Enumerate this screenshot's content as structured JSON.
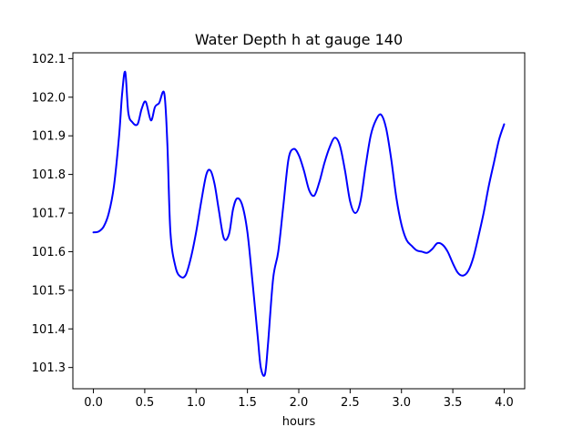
{
  "chart_data": {
    "type": "line",
    "title": "Water Depth h at gauge 140",
    "xlabel": "hours",
    "ylabel": "",
    "xlim": [
      -0.2,
      4.2
    ],
    "ylim": [
      101.245,
      102.115
    ],
    "x_ticks": [
      0.0,
      0.5,
      1.0,
      1.5,
      2.0,
      2.5,
      3.0,
      3.5,
      4.0
    ],
    "x_tick_labels": [
      "0.0",
      "0.5",
      "1.0",
      "1.5",
      "2.0",
      "2.5",
      "3.0",
      "3.5",
      "4.0"
    ],
    "y_ticks": [
      101.3,
      101.4,
      101.5,
      101.6,
      101.7,
      101.8,
      101.9,
      102.0,
      102.1
    ],
    "y_tick_labels": [
      "101.3",
      "101.4",
      "101.5",
      "101.6",
      "101.7",
      "101.8",
      "101.9",
      "102.0",
      "102.1"
    ],
    "grid": false,
    "line_color": "#0000ff",
    "series": [
      {
        "x": [
          0.0,
          0.05,
          0.1,
          0.15,
          0.2,
          0.25,
          0.28,
          0.31,
          0.34,
          0.38,
          0.43,
          0.47,
          0.51,
          0.56,
          0.6,
          0.64,
          0.69,
          0.72,
          0.75,
          0.8,
          0.85,
          0.9,
          0.95,
          1.0,
          1.05,
          1.1,
          1.14,
          1.18,
          1.22,
          1.27,
          1.32,
          1.36,
          1.4,
          1.45,
          1.5,
          1.55,
          1.6,
          1.63,
          1.67,
          1.7,
          1.75,
          1.8,
          1.85,
          1.9,
          1.95,
          2.0,
          2.05,
          2.1,
          2.15,
          2.2,
          2.25,
          2.3,
          2.35,
          2.4,
          2.45,
          2.5,
          2.55,
          2.6,
          2.65,
          2.7,
          2.75,
          2.8,
          2.85,
          2.9,
          2.95,
          3.0,
          3.05,
          3.1,
          3.15,
          3.2,
          3.25,
          3.3,
          3.35,
          3.4,
          3.45,
          3.5,
          3.55,
          3.6,
          3.65,
          3.7,
          3.75,
          3.8,
          3.85,
          3.9,
          3.95,
          4.0
        ],
        "values": [
          101.65,
          101.652,
          101.665,
          101.7,
          101.77,
          101.9,
          102.01,
          102.065,
          101.96,
          101.935,
          101.93,
          101.97,
          101.988,
          101.94,
          101.975,
          101.985,
          102.01,
          101.88,
          101.65,
          101.56,
          101.535,
          101.54,
          101.585,
          101.65,
          101.73,
          101.8,
          101.81,
          101.775,
          101.71,
          101.635,
          101.645,
          101.71,
          101.738,
          101.72,
          101.65,
          101.52,
          101.38,
          101.3,
          101.282,
          101.36,
          101.53,
          101.6,
          101.72,
          101.84,
          101.866,
          101.85,
          101.81,
          101.76,
          101.745,
          101.78,
          101.83,
          101.87,
          101.895,
          101.875,
          101.81,
          101.73,
          101.7,
          101.73,
          101.82,
          101.9,
          101.94,
          101.955,
          101.92,
          101.84,
          101.74,
          101.67,
          101.63,
          101.615,
          101.603,
          101.6,
          101.597,
          101.607,
          101.622,
          101.618,
          101.6,
          101.57,
          101.545,
          101.538,
          101.55,
          101.585,
          101.64,
          101.7,
          101.77,
          101.83,
          101.89,
          101.93
        ]
      }
    ]
  }
}
